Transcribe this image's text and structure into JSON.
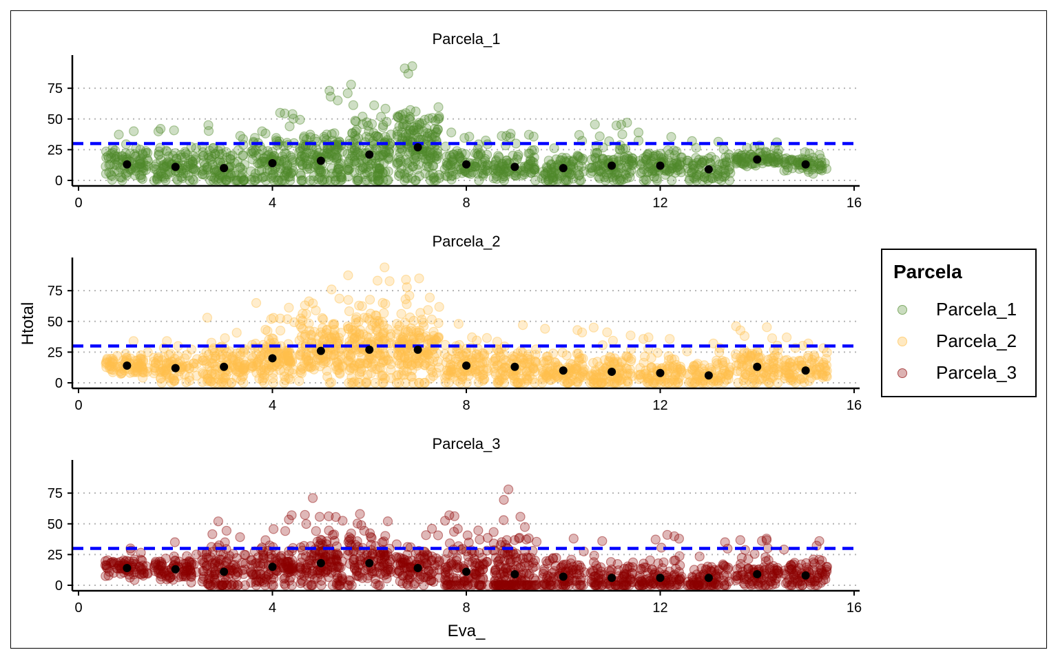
{
  "chart_data": {
    "type": "scatter",
    "xlabel": "Eva_",
    "ylabel": "Htotal",
    "xlim": [
      -0.2,
      16.1
    ],
    "ylim": [
      -3,
      99
    ],
    "x_ticks": [
      0,
      4,
      8,
      12,
      16
    ],
    "y_ticks": [
      0,
      25,
      50,
      75
    ],
    "grid": "horizontal dotted",
    "reference_line": {
      "y": 30,
      "style": "dashed",
      "color": "#0000ff"
    },
    "legend": {
      "title": "Parcela",
      "position": "right",
      "entries": [
        "Parcela_1",
        "Parcela_2",
        "Parcela_3"
      ]
    },
    "colors": {
      "Parcela_1": "#4f8a2b",
      "Parcela_2": "#ffc04d",
      "Parcela_3": "#8b0000",
      "mean_point": "#000000"
    },
    "panels": [
      {
        "name": "Parcela_1",
        "mean_by_eva": [
          {
            "x": 1,
            "y": 13
          },
          {
            "x": 2,
            "y": 11
          },
          {
            "x": 3,
            "y": 10
          },
          {
            "x": 4,
            "y": 14
          },
          {
            "x": 5,
            "y": 16
          },
          {
            "x": 6,
            "y": 21
          },
          {
            "x": 7,
            "y": 27
          },
          {
            "x": 8,
            "y": 13
          },
          {
            "x": 9,
            "y": 11
          },
          {
            "x": 10,
            "y": 10
          },
          {
            "x": 11,
            "y": 12
          },
          {
            "x": 12,
            "y": 12
          },
          {
            "x": 13,
            "y": 9
          },
          {
            "x": 14,
            "y": 17
          },
          {
            "x": 15,
            "y": 13
          }
        ],
        "spread_max_by_eva": [
          40,
          42,
          45,
          55,
          73,
          78,
          93,
          39,
          38,
          37,
          47,
          39,
          32,
          31,
          23
        ]
      },
      {
        "name": "Parcela_2",
        "mean_by_eva": [
          {
            "x": 1,
            "y": 14
          },
          {
            "x": 2,
            "y": 12
          },
          {
            "x": 3,
            "y": 13
          },
          {
            "x": 4,
            "y": 20
          },
          {
            "x": 5,
            "y": 26
          },
          {
            "x": 6,
            "y": 27
          },
          {
            "x": 7,
            "y": 27
          },
          {
            "x": 8,
            "y": 14
          },
          {
            "x": 9,
            "y": 13
          },
          {
            "x": 10,
            "y": 10
          },
          {
            "x": 11,
            "y": 9
          },
          {
            "x": 12,
            "y": 8
          },
          {
            "x": 13,
            "y": 6
          },
          {
            "x": 14,
            "y": 13
          },
          {
            "x": 15,
            "y": 10
          }
        ],
        "spread_max_by_eva": [
          34,
          34,
          53,
          65,
          76,
          94,
          85,
          48,
          47,
          44,
          45,
          37,
          32,
          46,
          37
        ]
      },
      {
        "name": "Parcela_3",
        "mean_by_eva": [
          {
            "x": 1,
            "y": 14
          },
          {
            "x": 2,
            "y": 13
          },
          {
            "x": 3,
            "y": 11
          },
          {
            "x": 4,
            "y": 15
          },
          {
            "x": 5,
            "y": 18
          },
          {
            "x": 6,
            "y": 18
          },
          {
            "x": 7,
            "y": 14
          },
          {
            "x": 8,
            "y": 11
          },
          {
            "x": 9,
            "y": 9
          },
          {
            "x": 10,
            "y": 7
          },
          {
            "x": 11,
            "y": 6
          },
          {
            "x": 12,
            "y": 6
          },
          {
            "x": 13,
            "y": 6
          },
          {
            "x": 14,
            "y": 9
          },
          {
            "x": 15,
            "y": 8
          }
        ],
        "spread_max_by_eva": [
          30,
          35,
          52,
          57,
          71,
          58,
          46,
          57,
          78,
          38,
          36,
          41,
          35,
          38,
          36
        ]
      }
    ]
  }
}
